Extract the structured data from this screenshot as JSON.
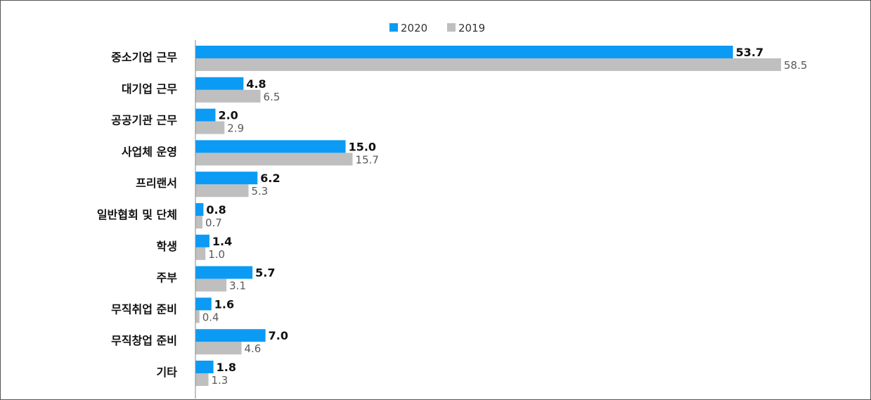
{
  "chart_data": {
    "type": "bar",
    "orientation": "horizontal",
    "title": "",
    "xlabel": "",
    "ylabel": "",
    "categories": [
      "중소기업 근무",
      "대기업 근무",
      "공공기관 근무",
      "사업체 운영",
      "프리랜서",
      "일반협회 및 단체",
      "학생",
      "주부",
      "무직취업 준비",
      "무직창업 준비",
      "기타"
    ],
    "series": [
      {
        "name": "2020",
        "color": "#0B9BF5",
        "values": [
          53.7,
          4.8,
          2.0,
          15.0,
          6.2,
          0.8,
          1.4,
          5.7,
          1.6,
          7.0,
          1.8
        ]
      },
      {
        "name": "2019",
        "color": "#BFBFBF",
        "values": [
          58.5,
          6.5,
          2.9,
          15.7,
          5.3,
          0.7,
          1.0,
          3.1,
          0.4,
          4.6,
          1.3
        ]
      }
    ],
    "xlim": [
      0,
      58.5
    ],
    "grid": false,
    "legend_position": "top-center"
  }
}
